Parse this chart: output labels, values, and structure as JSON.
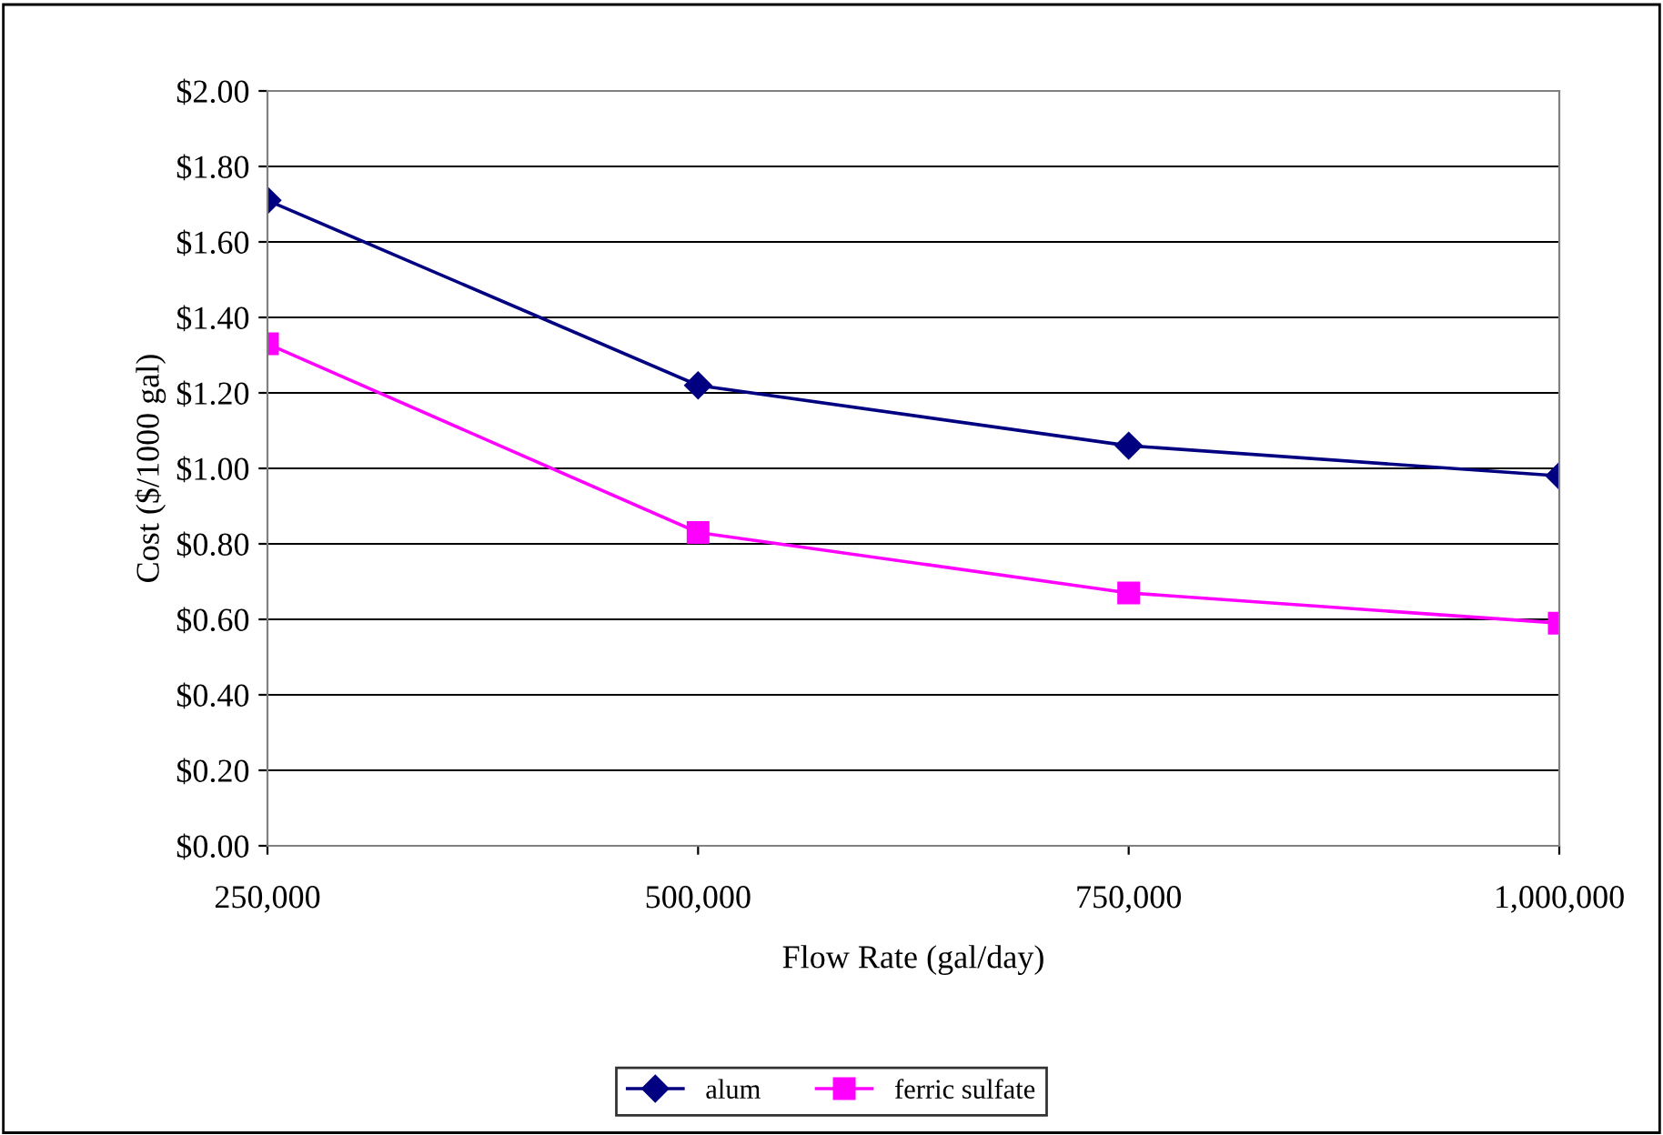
{
  "chart_data": {
    "type": "line",
    "xlabel": "Flow Rate (gal/day)",
    "ylabel": "Cost ($/1000 gal)",
    "categories": [
      "250,000",
      "500,000",
      "750,000",
      "1,000,000"
    ],
    "series": [
      {
        "name": "alum",
        "color": "#000080",
        "marker": "diamond",
        "values": [
          1.71,
          1.22,
          1.06,
          0.98
        ]
      },
      {
        "name": "ferric sulfate",
        "color": "#ff00ff",
        "marker": "square",
        "values": [
          1.33,
          0.83,
          0.67,
          0.59
        ]
      }
    ],
    "ylim": [
      0,
      2
    ],
    "yticks": [
      {
        "value": 0,
        "label": "$0.00"
      },
      {
        "value": 0.2,
        "label": "$0.20"
      },
      {
        "value": 0.4,
        "label": "$0.40"
      },
      {
        "value": 0.6,
        "label": "$0.60"
      },
      {
        "value": 0.8,
        "label": "$0.80"
      },
      {
        "value": 1.0,
        "label": "$1.00"
      },
      {
        "value": 1.2,
        "label": "$1.20"
      },
      {
        "value": 1.4,
        "label": "$1.40"
      },
      {
        "value": 1.6,
        "label": "$1.60"
      },
      {
        "value": 1.8,
        "label": "$1.80"
      },
      {
        "value": 2.0,
        "label": "$2.00"
      }
    ],
    "grid": "y",
    "legend": "bottom",
    "line_style": "solid"
  }
}
